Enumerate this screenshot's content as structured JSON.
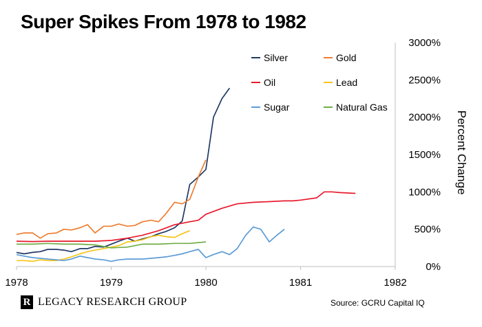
{
  "chart_data": {
    "type": "line",
    "title": "Super Spikes From 1978 to 1982",
    "xlabel": "",
    "ylabel": "Percent Change",
    "xlim": [
      1978,
      1982
    ],
    "ylim": [
      0,
      3000
    ],
    "x_ticks": [
      "1978",
      "1979",
      "1980",
      "1981",
      "1982"
    ],
    "y_ticks": [
      "0%",
      "500%",
      "1000%",
      "1500%",
      "2000%",
      "2500%",
      "3000%"
    ],
    "y_axis_position": "right",
    "grid": false,
    "legend_position": "top-right",
    "series": [
      {
        "name": "Silver",
        "color": "#1f3864",
        "points": [
          [
            1978.0,
            190
          ],
          [
            1978.08,
            170
          ],
          [
            1978.17,
            190
          ],
          [
            1978.25,
            200
          ],
          [
            1978.33,
            230
          ],
          [
            1978.42,
            230
          ],
          [
            1978.5,
            220
          ],
          [
            1978.58,
            200
          ],
          [
            1978.67,
            240
          ],
          [
            1978.75,
            240
          ],
          [
            1978.83,
            270
          ],
          [
            1978.92,
            260
          ],
          [
            1979.0,
            300
          ],
          [
            1979.08,
            340
          ],
          [
            1979.17,
            380
          ],
          [
            1979.25,
            340
          ],
          [
            1979.33,
            370
          ],
          [
            1979.42,
            400
          ],
          [
            1979.5,
            440
          ],
          [
            1979.58,
            470
          ],
          [
            1979.67,
            520
          ],
          [
            1979.75,
            610
          ],
          [
            1979.83,
            1100
          ],
          [
            1979.92,
            1200
          ],
          [
            1980.0,
            1300
          ],
          [
            1980.08,
            2000
          ],
          [
            1980.17,
            2250
          ],
          [
            1980.25,
            2390
          ]
        ]
      },
      {
        "name": "Gold",
        "color": "#ed7d31",
        "points": [
          [
            1978.0,
            430
          ],
          [
            1978.08,
            450
          ],
          [
            1978.17,
            450
          ],
          [
            1978.25,
            380
          ],
          [
            1978.33,
            440
          ],
          [
            1978.42,
            450
          ],
          [
            1978.5,
            500
          ],
          [
            1978.58,
            490
          ],
          [
            1978.67,
            520
          ],
          [
            1978.75,
            560
          ],
          [
            1978.83,
            450
          ],
          [
            1978.92,
            540
          ],
          [
            1979.0,
            540
          ],
          [
            1979.08,
            570
          ],
          [
            1979.17,
            540
          ],
          [
            1979.25,
            550
          ],
          [
            1979.33,
            600
          ],
          [
            1979.42,
            620
          ],
          [
            1979.5,
            600
          ],
          [
            1979.58,
            710
          ],
          [
            1979.67,
            860
          ],
          [
            1979.75,
            840
          ],
          [
            1979.83,
            900
          ],
          [
            1979.92,
            1200
          ],
          [
            1980.0,
            1430
          ]
        ]
      },
      {
        "name": "Oil",
        "color": "#e8192c",
        "points": [
          [
            1978.0,
            340
          ],
          [
            1978.17,
            335
          ],
          [
            1978.33,
            340
          ],
          [
            1978.5,
            340
          ],
          [
            1978.67,
            340
          ],
          [
            1978.83,
            340
          ],
          [
            1978.92,
            345
          ],
          [
            1979.0,
            350
          ],
          [
            1979.17,
            380
          ],
          [
            1979.33,
            420
          ],
          [
            1979.5,
            480
          ],
          [
            1979.67,
            560
          ],
          [
            1979.83,
            600
          ],
          [
            1979.92,
            620
          ],
          [
            1980.0,
            700
          ],
          [
            1980.17,
            780
          ],
          [
            1980.33,
            840
          ],
          [
            1980.5,
            860
          ],
          [
            1980.67,
            870
          ],
          [
            1980.83,
            880
          ],
          [
            1980.92,
            880
          ],
          [
            1981.0,
            890
          ],
          [
            1981.17,
            920
          ],
          [
            1981.25,
            1000
          ],
          [
            1981.33,
            1000
          ],
          [
            1981.42,
            990
          ],
          [
            1981.58,
            980
          ]
        ]
      },
      {
        "name": "Lead",
        "color": "#f5c518",
        "points": [
          [
            1978.0,
            80
          ],
          [
            1978.08,
            80
          ],
          [
            1978.17,
            70
          ],
          [
            1978.25,
            90
          ],
          [
            1978.33,
            80
          ],
          [
            1978.42,
            80
          ],
          [
            1978.5,
            100
          ],
          [
            1978.58,
            130
          ],
          [
            1978.67,
            170
          ],
          [
            1978.75,
            200
          ],
          [
            1978.83,
            220
          ],
          [
            1978.92,
            240
          ],
          [
            1979.0,
            260
          ],
          [
            1979.08,
            280
          ],
          [
            1979.17,
            330
          ],
          [
            1979.25,
            340
          ],
          [
            1979.33,
            360
          ],
          [
            1979.42,
            400
          ],
          [
            1979.5,
            420
          ],
          [
            1979.58,
            400
          ],
          [
            1979.67,
            390
          ],
          [
            1979.75,
            440
          ],
          [
            1979.83,
            480
          ]
        ]
      },
      {
        "name": "Sugar",
        "color": "#5b9bd5",
        "points": [
          [
            1978.0,
            160
          ],
          [
            1978.08,
            140
          ],
          [
            1978.17,
            120
          ],
          [
            1978.25,
            110
          ],
          [
            1978.33,
            100
          ],
          [
            1978.42,
            90
          ],
          [
            1978.5,
            80
          ],
          [
            1978.58,
            100
          ],
          [
            1978.67,
            140
          ],
          [
            1978.75,
            120
          ],
          [
            1978.83,
            100
          ],
          [
            1978.92,
            90
          ],
          [
            1979.0,
            70
          ],
          [
            1979.08,
            90
          ],
          [
            1979.17,
            100
          ],
          [
            1979.25,
            100
          ],
          [
            1979.33,
            100
          ],
          [
            1979.42,
            110
          ],
          [
            1979.5,
            120
          ],
          [
            1979.58,
            130
          ],
          [
            1979.67,
            150
          ],
          [
            1979.75,
            170
          ],
          [
            1979.83,
            200
          ],
          [
            1979.92,
            230
          ],
          [
            1980.0,
            120
          ],
          [
            1980.08,
            160
          ],
          [
            1980.17,
            200
          ],
          [
            1980.25,
            160
          ],
          [
            1980.33,
            240
          ],
          [
            1980.42,
            420
          ],
          [
            1980.5,
            530
          ],
          [
            1980.58,
            500
          ],
          [
            1980.67,
            330
          ],
          [
            1980.75,
            420
          ],
          [
            1980.83,
            500
          ]
        ]
      },
      {
        "name": "Natural Gas",
        "color": "#70ad47",
        "points": [
          [
            1978.0,
            300
          ],
          [
            1978.17,
            300
          ],
          [
            1978.33,
            310
          ],
          [
            1978.5,
            300
          ],
          [
            1978.67,
            300
          ],
          [
            1978.83,
            290
          ],
          [
            1979.0,
            250
          ],
          [
            1979.17,
            260
          ],
          [
            1979.33,
            300
          ],
          [
            1979.5,
            300
          ],
          [
            1979.67,
            310
          ],
          [
            1979.83,
            310
          ],
          [
            1980.0,
            330
          ]
        ]
      }
    ]
  },
  "footer": {
    "logo_mark": "R",
    "logo_text": "LEGACY RESEARCH GROUP",
    "source": "Source: GCRU Capital IQ"
  }
}
